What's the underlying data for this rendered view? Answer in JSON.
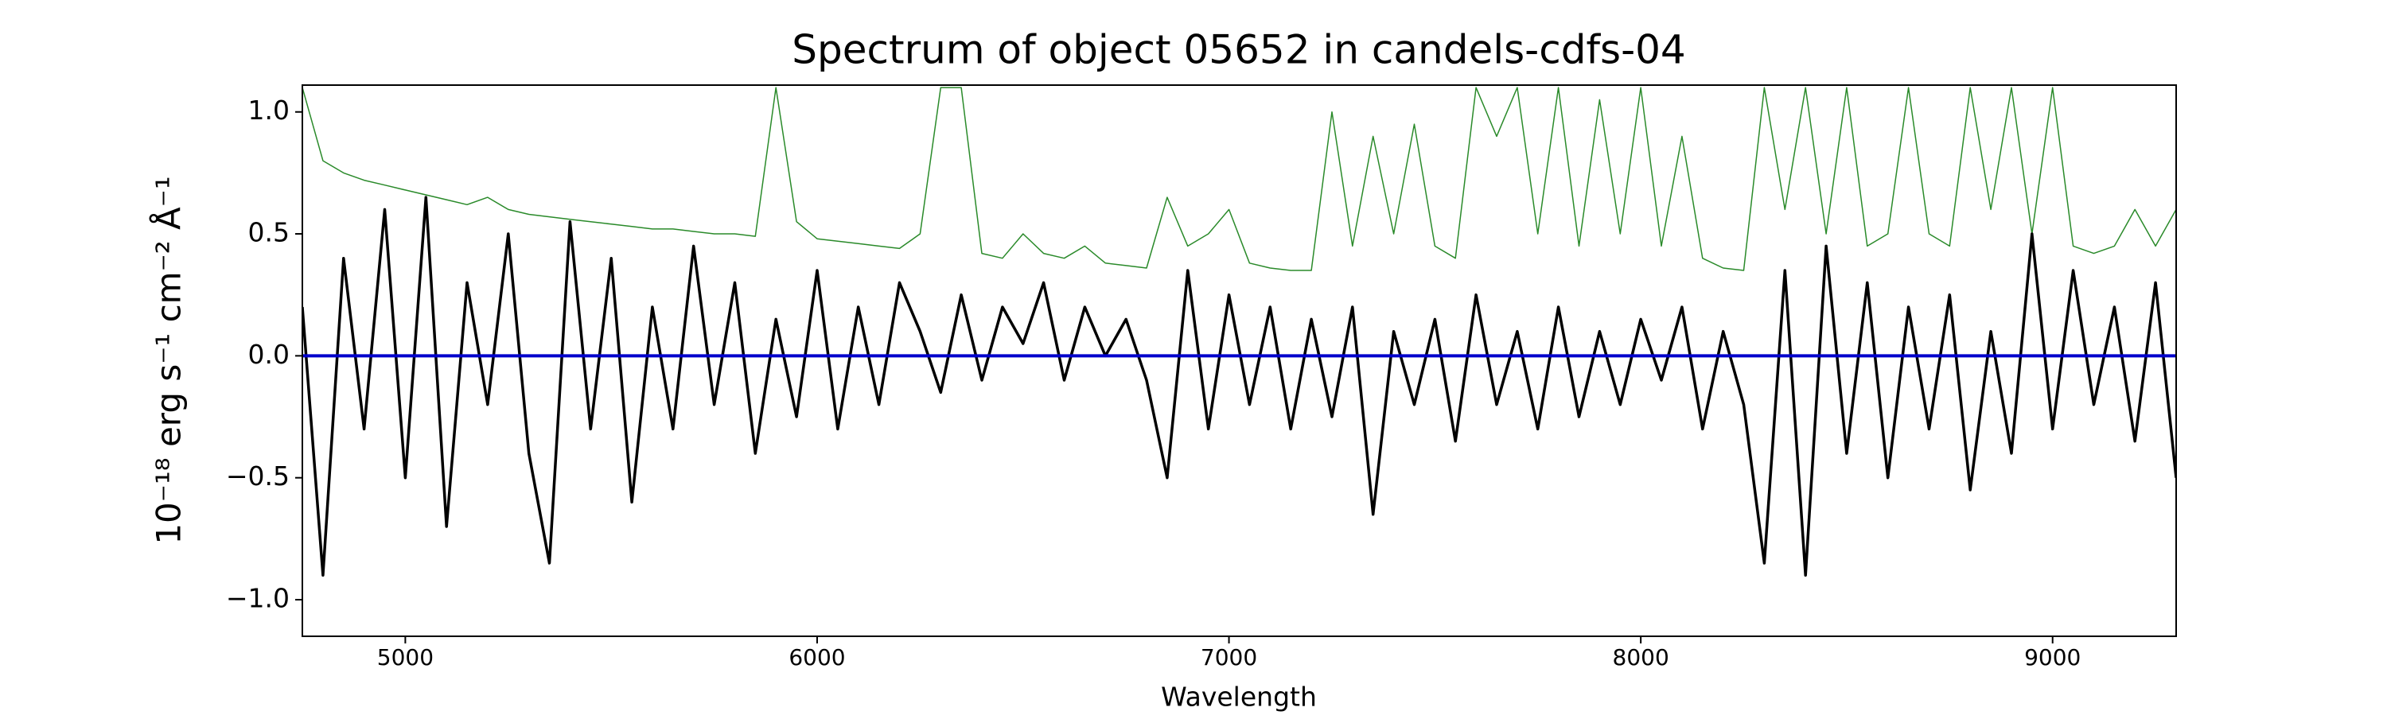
{
  "chart_data": {
    "type": "line",
    "title": "Spectrum of object 05652 in candels-cdfs-04",
    "xlabel": "Wavelength",
    "ylabel": "10⁻¹⁸ erg s⁻¹ cm⁻² Å⁻¹",
    "xlim": [
      4750,
      9300
    ],
    "ylim": [
      -1.15,
      1.11
    ],
    "xticks": [
      5000,
      6000,
      7000,
      8000,
      9000
    ],
    "yticks": [
      {
        "value": -1.0,
        "label": "−1.0"
      },
      {
        "value": -0.5,
        "label": "−0.5"
      },
      {
        "value": 0.0,
        "label": "0.0"
      },
      0.5,
      {
        "value": 1.0,
        "label": "1.0"
      }
    ],
    "x": [
      4750,
      4800,
      4850,
      4900,
      4950,
      5000,
      5050,
      5100,
      5150,
      5200,
      5250,
      5300,
      5350,
      5400,
      5450,
      5500,
      5550,
      5600,
      5650,
      5700,
      5750,
      5800,
      5850,
      5900,
      5950,
      6000,
      6050,
      6100,
      6150,
      6200,
      6250,
      6300,
      6350,
      6400,
      6450,
      6500,
      6550,
      6600,
      6650,
      6700,
      6750,
      6800,
      6850,
      6900,
      6950,
      7000,
      7050,
      7100,
      7150,
      7200,
      7250,
      7300,
      7350,
      7400,
      7450,
      7500,
      7550,
      7600,
      7650,
      7700,
      7750,
      7800,
      7850,
      7900,
      7950,
      8000,
      8050,
      8100,
      8150,
      8200,
      8250,
      8300,
      8350,
      8400,
      8450,
      8500,
      8550,
      8600,
      8650,
      8700,
      8750,
      8800,
      8850,
      8900,
      8950,
      9000,
      9050,
      9100,
      9150,
      9200,
      9250,
      9300
    ],
    "series": [
      {
        "color": "#2a8a2a",
        "width": 1.5,
        "values": [
          1.1,
          0.8,
          0.75,
          0.72,
          0.7,
          0.68,
          0.66,
          0.64,
          0.62,
          0.65,
          0.6,
          0.58,
          0.57,
          0.56,
          0.55,
          0.54,
          0.53,
          0.52,
          0.52,
          0.51,
          0.5,
          0.5,
          0.49,
          1.1,
          0.55,
          0.48,
          0.47,
          0.46,
          0.45,
          0.44,
          0.5,
          1.1,
          1.1,
          0.42,
          0.4,
          0.5,
          0.42,
          0.4,
          0.45,
          0.38,
          0.37,
          0.36,
          0.65,
          0.45,
          0.5,
          0.6,
          0.38,
          0.36,
          0.35,
          0.35,
          1.0,
          0.45,
          0.9,
          0.5,
          0.95,
          0.45,
          0.4,
          1.1,
          0.9,
          1.1,
          0.5,
          1.1,
          0.45,
          1.05,
          0.5,
          1.1,
          0.45,
          0.9,
          0.4,
          0.36,
          0.35,
          1.1,
          0.6,
          1.1,
          0.5,
          1.1,
          0.45,
          0.5,
          1.1,
          0.5,
          0.45,
          1.1,
          0.6,
          1.1,
          0.5,
          1.1,
          0.45,
          0.42,
          0.45,
          0.6,
          0.45,
          0.6
        ]
      },
      {
        "color": "#000000",
        "width": 3.5,
        "values": [
          0.2,
          -0.9,
          0.4,
          -0.3,
          0.6,
          -0.5,
          0.65,
          -0.7,
          0.3,
          -0.2,
          0.5,
          -0.4,
          -0.85,
          0.55,
          -0.3,
          0.4,
          -0.6,
          0.2,
          -0.3,
          0.45,
          -0.2,
          0.3,
          -0.4,
          0.15,
          -0.25,
          0.35,
          -0.3,
          0.2,
          -0.2,
          0.3,
          0.1,
          -0.15,
          0.25,
          -0.1,
          0.2,
          0.05,
          0.3,
          -0.1,
          0.2,
          0.0,
          0.15,
          -0.1,
          -0.5,
          0.35,
          -0.3,
          0.25,
          -0.2,
          0.2,
          -0.3,
          0.15,
          -0.25,
          0.2,
          -0.65,
          0.1,
          -0.2,
          0.15,
          -0.35,
          0.25,
          -0.2,
          0.1,
          -0.3,
          0.2,
          -0.25,
          0.1,
          -0.2,
          0.15,
          -0.1,
          0.2,
          -0.3,
          0.1,
          -0.2,
          -0.85,
          0.35,
          -0.9,
          0.45,
          -0.4,
          0.3,
          -0.5,
          0.2,
          -0.3,
          0.25,
          -0.55,
          0.1,
          -0.4,
          0.5,
          -0.3,
          0.35,
          -0.2,
          0.2,
          -0.35,
          0.3,
          -0.5
        ]
      },
      {
        "color": "#0000cc",
        "width": 4,
        "x": [
          4750,
          9300
        ],
        "values": [
          0,
          0
        ]
      }
    ]
  }
}
